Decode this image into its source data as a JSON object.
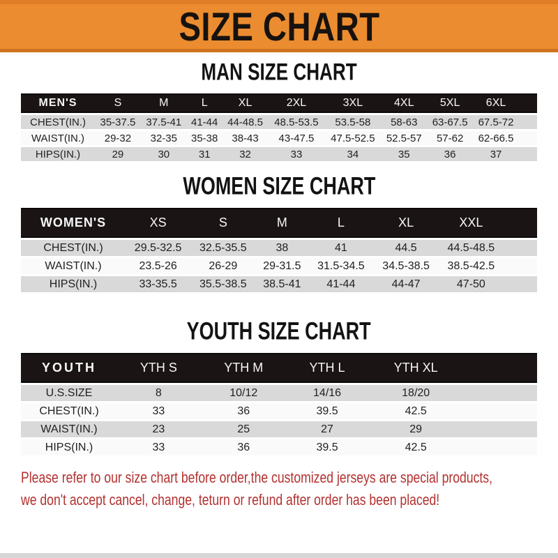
{
  "banner": {
    "title": "SIZE CHART",
    "bg_color": "#ea8c2f",
    "text_color": "#17120f"
  },
  "sections": [
    {
      "heading": "MAN SIZE CHART",
      "header_label": "MEN'S",
      "columns": [
        "S",
        "M",
        "L",
        "XL",
        "2XL",
        "3XL",
        "4XL",
        "5XL",
        "6XL"
      ],
      "rows": [
        {
          "label": "CHEST(IN.)",
          "values": [
            "35-37.5",
            "37.5-41",
            "41-44",
            "44-48.5",
            "48.5-53.5",
            "53.5-58",
            "58-63",
            "63-67.5",
            "67.5-72"
          ]
        },
        {
          "label": "WAIST(IN.)",
          "values": [
            "29-32",
            "32-35",
            "35-38",
            "38-43",
            "43-47.5",
            "47.5-52.5",
            "52.5-57",
            "57-62",
            "62-66.5"
          ]
        },
        {
          "label": "HIPS(IN.)",
          "values": [
            "29",
            "30",
            "31",
            "32",
            "33",
            "34",
            "35",
            "36",
            "37"
          ]
        }
      ]
    },
    {
      "heading": "WOMEN SIZE CHART",
      "header_label": "WOMEN'S",
      "columns": [
        "XS",
        "S",
        "M",
        "L",
        "XL",
        "XXL"
      ],
      "rows": [
        {
          "label": "CHEST(IN.)",
          "values": [
            "29.5-32.5",
            "32.5-35.5",
            "38",
            "41",
            "44.5",
            "44.5-48.5"
          ]
        },
        {
          "label": "WAIST(IN.)",
          "values": [
            "23.5-26",
            "26-29",
            "29-31.5",
            "31.5-34.5",
            "34.5-38.5",
            "38.5-42.5"
          ]
        },
        {
          "label": "HIPS(IN.)",
          "values": [
            "33-35.5",
            "35.5-38.5",
            "38.5-41",
            "41-44",
            "44-47",
            "47-50"
          ]
        }
      ]
    },
    {
      "heading": "YOUTH SIZE CHART",
      "header_label": "YOUTH",
      "columns": [
        "YTH S",
        "YTH M",
        "YTH L",
        "YTH XL"
      ],
      "rows": [
        {
          "label": "U.S.SIZE",
          "values": [
            "8",
            "10/12",
            "14/16",
            "18/20"
          ]
        },
        {
          "label": "CHEST(IN.)",
          "values": [
            "33",
            "36",
            "39.5",
            "42.5"
          ]
        },
        {
          "label": "WAIST(IN.)",
          "values": [
            "23",
            "25",
            "27",
            "29"
          ]
        },
        {
          "label": "HIPS(IN.)",
          "values": [
            "33",
            "36",
            "39.5",
            "42.5"
          ]
        }
      ]
    }
  ],
  "footer": {
    "line1": "Please refer to our size chart before order,the customized jerseys are special products,",
    "line2": "we don't accept cancel, change, teturn or refund after order has been placed!",
    "text_color": "#b23230"
  }
}
